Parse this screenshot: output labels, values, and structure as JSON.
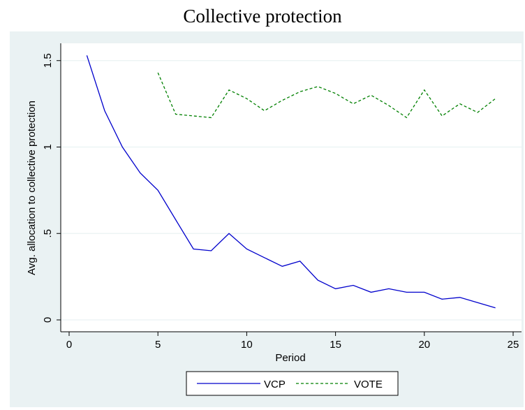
{
  "chart_data": {
    "type": "line",
    "title": "Collective protection",
    "xlabel": "Period",
    "ylabel": "Avg. allocation to collective protection",
    "xlim": [
      0,
      25
    ],
    "ylim": [
      0,
      1.5
    ],
    "xticks": [
      0,
      5,
      10,
      15,
      20,
      25
    ],
    "yticks": [
      0,
      0.5,
      1,
      1.5
    ],
    "ytick_labels": [
      "0",
      ".5",
      "1",
      "1.5"
    ],
    "grid": "horizontal",
    "legend_position": "bottom",
    "series": [
      {
        "name": "VCP",
        "color": "#0000cc",
        "style": "solid",
        "x": [
          1,
          2,
          3,
          4,
          5,
          6,
          7,
          8,
          9,
          10,
          11,
          12,
          13,
          14,
          15,
          16,
          17,
          18,
          19,
          20,
          21,
          22,
          23,
          24
        ],
        "values": [
          1.53,
          1.21,
          1.0,
          0.85,
          0.75,
          0.58,
          0.41,
          0.4,
          0.5,
          0.41,
          0.36,
          0.31,
          0.34,
          0.23,
          0.18,
          0.2,
          0.16,
          0.18,
          0.16,
          0.16,
          0.12,
          0.13,
          0.1,
          0.07
        ]
      },
      {
        "name": "VOTE",
        "color": "#008000",
        "style": "dashed",
        "x": [
          5,
          6,
          7,
          8,
          9,
          10,
          11,
          12,
          13,
          14,
          15,
          16,
          17,
          18,
          19,
          20,
          21,
          22,
          23,
          24
        ],
        "values": [
          1.43,
          1.19,
          1.18,
          1.17,
          1.33,
          1.28,
          1.21,
          1.27,
          1.32,
          1.35,
          1.31,
          1.25,
          1.3,
          1.24,
          1.17,
          1.33,
          1.18,
          1.25,
          1.2,
          1.28
        ]
      }
    ]
  }
}
